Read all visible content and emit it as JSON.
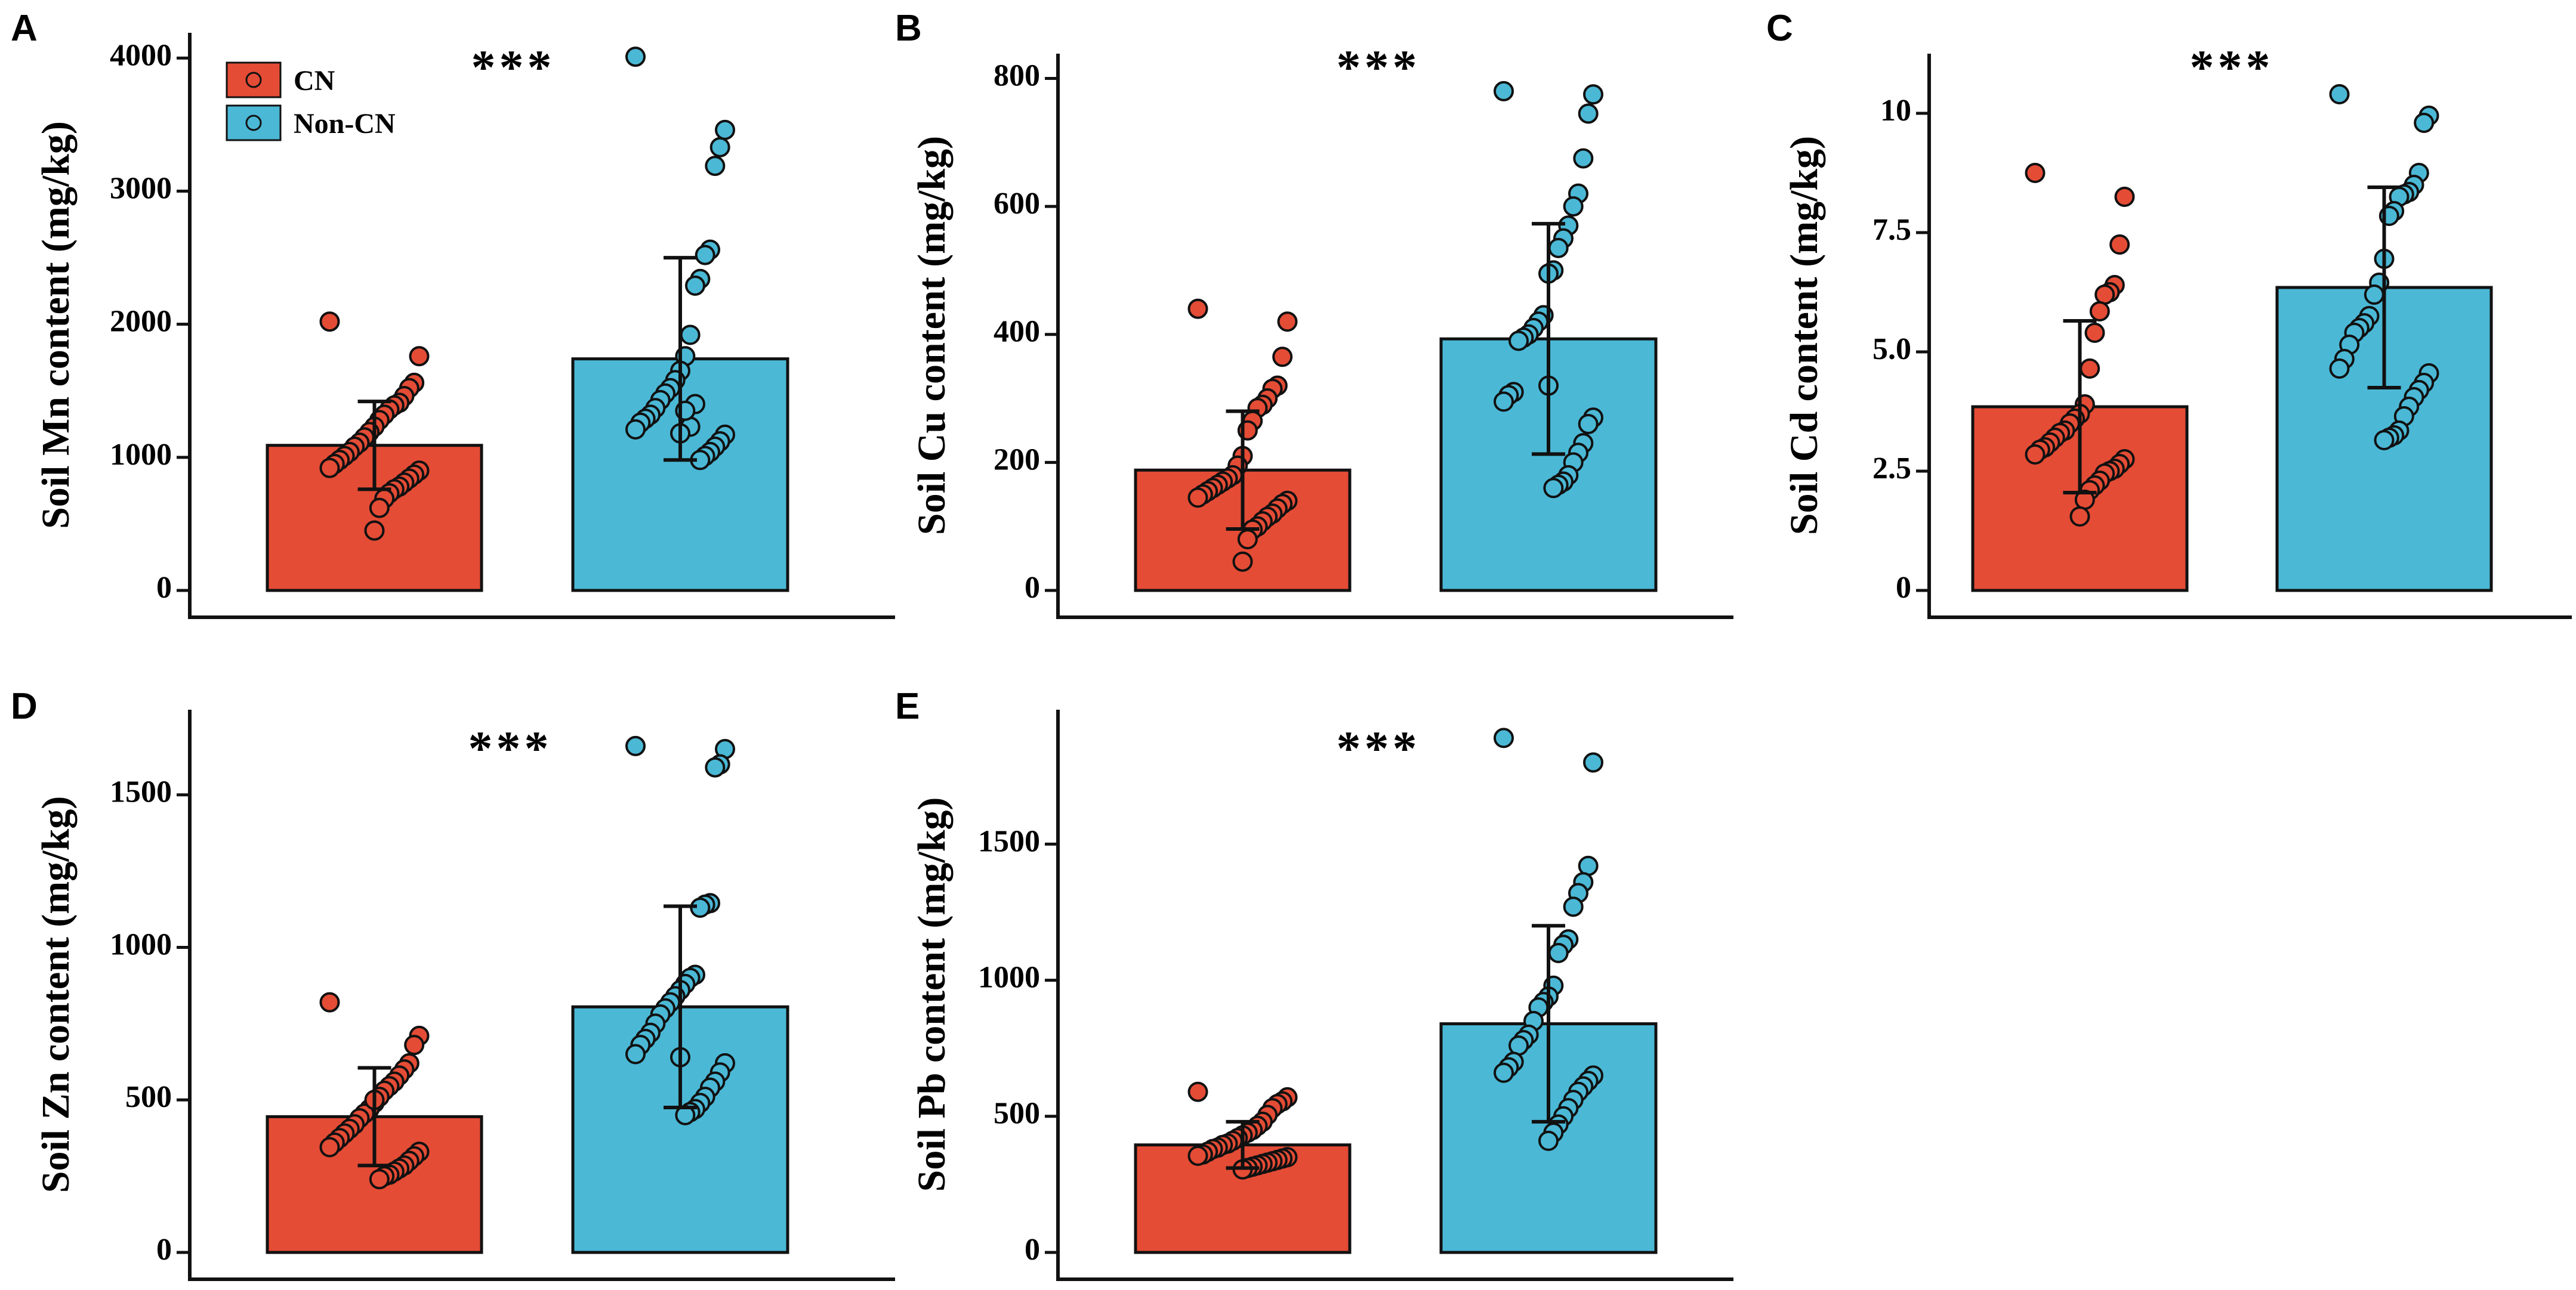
{
  "colors": {
    "cn": "#e54c35",
    "non_cn": "#4bb9d6",
    "outline": "#111111"
  },
  "legend": {
    "items": [
      {
        "label": "CN",
        "color": "#e54c35"
      },
      {
        "label": "Non-CN",
        "color": "#4bb9d6"
      }
    ]
  },
  "chart_data": [
    {
      "type": "bar",
      "panel": "A",
      "ylabel": "Soil Mn content (mg/kg)",
      "significance": "***",
      "ylim": [
        0,
        4100
      ],
      "yticks": [
        0,
        1000,
        2000,
        3000,
        4000
      ],
      "show_legend": true,
      "series": [
        {
          "name": "CN",
          "mean": 1090,
          "sd": 330,
          "points": [
            2020,
            1760,
            1560,
            1520,
            1460,
            1410,
            1390,
            1360,
            1320,
            1280,
            1230,
            1190,
            1150,
            1110,
            1080,
            1040,
            1010,
            980,
            950,
            920,
            900,
            870,
            840,
            810,
            780,
            760,
            730,
            690,
            620,
            450
          ]
        },
        {
          "name": "Non-CN",
          "mean": 1740,
          "sd": 760,
          "points": [
            4010,
            3460,
            3330,
            3190,
            2560,
            2520,
            2340,
            2290,
            1920,
            1760,
            1650,
            1580,
            1520,
            1480,
            1430,
            1370,
            1320,
            1290,
            1260,
            1210,
            1170,
            1120,
            1080,
            1040,
            1010,
            980,
            1400,
            1230,
            1350,
            1180
          ]
        }
      ]
    },
    {
      "type": "bar",
      "panel": "B",
      "ylabel": "Soil Cu content (mg/kg)",
      "significance": "***",
      "ylim": [
        0,
        820
      ],
      "yticks": [
        0,
        200,
        400,
        600,
        800
      ],
      "show_legend": false,
      "series": [
        {
          "name": "CN",
          "mean": 188,
          "sd": 92,
          "points": [
            440,
            420,
            365,
            320,
            315,
            300,
            290,
            285,
            265,
            250,
            210,
            195,
            180,
            175,
            170,
            165,
            160,
            155,
            150,
            145,
            140,
            135,
            128,
            120,
            115,
            108,
            100,
            95,
            80,
            45
          ]
        },
        {
          "name": "Non-CN",
          "mean": 393,
          "sd": 180,
          "points": [
            780,
            775,
            745,
            675,
            620,
            600,
            570,
            550,
            535,
            500,
            495,
            430,
            420,
            410,
            400,
            395,
            390,
            310,
            305,
            295,
            270,
            260,
            230,
            215,
            200,
            180,
            170,
            165,
            160,
            320
          ]
        }
      ]
    },
    {
      "type": "bar",
      "panel": "C",
      "ylabel": "Soil Cd content (mg/kg)",
      "significance": "***",
      "ylim": [
        0,
        11
      ],
      "yticks": [
        0,
        2.5,
        5.0,
        7.5,
        10
      ],
      "ytick_labels": [
        "0",
        "2.5",
        "5.0",
        "7.5",
        "10"
      ],
      "show_legend": false,
      "series": [
        {
          "name": "CN",
          "mean": 3.85,
          "sd": 1.8,
          "points": [
            8.75,
            8.25,
            7.25,
            6.4,
            6.25,
            6.2,
            5.85,
            5.4,
            4.65,
            3.9,
            3.7,
            3.6,
            3.5,
            3.35,
            3.3,
            3.2,
            3.1,
            3.0,
            2.95,
            2.85,
            2.75,
            2.65,
            2.55,
            2.5,
            2.45,
            2.3,
            2.2,
            2.1,
            1.9,
            1.55
          ]
        },
        {
          "name": "Non-CN",
          "mean": 6.35,
          "sd": 2.1,
          "points": [
            10.4,
            9.95,
            9.8,
            8.75,
            8.5,
            8.35,
            8.3,
            8.25,
            7.95,
            7.85,
            6.95,
            6.45,
            6.2,
            5.75,
            5.6,
            5.5,
            5.4,
            5.15,
            4.85,
            4.65,
            4.55,
            4.35,
            4.2,
            4.05,
            3.85,
            3.65,
            3.35,
            3.25,
            3.2,
            3.15
          ]
        }
      ]
    },
    {
      "type": "bar",
      "panel": "D",
      "ylabel": "Soil Zn content (mg/kg)",
      "significance": "***",
      "ylim": [
        0,
        1740
      ],
      "yticks": [
        0,
        500,
        1000,
        1500
      ],
      "show_legend": false,
      "series": [
        {
          "name": "CN",
          "mean": 445,
          "sd": 160,
          "points": [
            820,
            710,
            680,
            620,
            600,
            580,
            560,
            545,
            530,
            510,
            490,
            470,
            455,
            440,
            420,
            405,
            390,
            375,
            360,
            345,
            330,
            315,
            300,
            285,
            275,
            265,
            255,
            250,
            240,
            500
          ]
        },
        {
          "name": "Non-CN",
          "mean": 805,
          "sd": 330,
          "points": [
            1660,
            1650,
            1600,
            1590,
            1145,
            1140,
            1130,
            910,
            900,
            880,
            860,
            840,
            820,
            800,
            780,
            750,
            720,
            700,
            680,
            650,
            620,
            590,
            560,
            540,
            510,
            490,
            470,
            460,
            450,
            640
          ]
        }
      ]
    },
    {
      "type": "bar",
      "panel": "E",
      "ylabel": "Soil Pb content (mg/kg)",
      "significance": "***",
      "ylim": [
        0,
        1950
      ],
      "yticks": [
        0,
        500,
        1000,
        1500
      ],
      "show_legend": false,
      "series": [
        {
          "name": "CN",
          "mean": 395,
          "sd": 85,
          "points": [
            590,
            570,
            555,
            545,
            530,
            505,
            480,
            465,
            450,
            440,
            430,
            420,
            410,
            400,
            395,
            385,
            380,
            370,
            360,
            355,
            350,
            345,
            340,
            335,
            330,
            325,
            320,
            315,
            310,
            305
          ]
        },
        {
          "name": "Non-CN",
          "mean": 840,
          "sd": 360,
          "points": [
            1890,
            1800,
            1420,
            1360,
            1320,
            1270,
            1150,
            1130,
            1100,
            980,
            940,
            920,
            900,
            850,
            800,
            780,
            760,
            700,
            680,
            660,
            650,
            630,
            610,
            590,
            560,
            530,
            500,
            470,
            440,
            410
          ]
        }
      ]
    }
  ]
}
